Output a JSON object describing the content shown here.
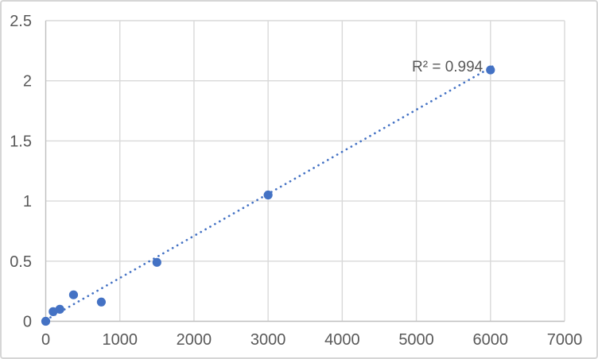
{
  "chart": {
    "background": "#FFFFFF",
    "border_color": "#D6D6D6"
  },
  "chart_data": {
    "type": "scatter",
    "title": "",
    "xlabel": "",
    "ylabel": "",
    "legend": "none",
    "grid": true,
    "series": [
      {
        "name": "standard-curve-points",
        "marker_color": "#4472C4",
        "marker_radius": 5.6,
        "points": [
          {
            "x": 0,
            "y": 0.0
          },
          {
            "x": 100,
            "y": 0.08
          },
          {
            "x": 190,
            "y": 0.1
          },
          {
            "x": 375,
            "y": 0.22
          },
          {
            "x": 750,
            "y": 0.16
          },
          {
            "x": 1500,
            "y": 0.49
          },
          {
            "x": 3000,
            "y": 1.05
          },
          {
            "x": 6000,
            "y": 2.09
          }
        ]
      }
    ],
    "trendline": {
      "type": "linear",
      "style": "dotted",
      "color": "#4472C4",
      "start": {
        "x": 0,
        "y": 0.01
      },
      "end": {
        "x": 6060,
        "y": 2.13
      },
      "label": "R² = 0.994"
    },
    "x_axis": {
      "min": 0,
      "max": 7000,
      "tick_interval": 1000,
      "tick_values": [
        0,
        1000,
        2000,
        3000,
        4000,
        5000,
        6000,
        7000
      ],
      "tick_labels": [
        "0",
        "1000",
        "2000",
        "3000",
        "4000",
        "5000",
        "6000",
        "7000"
      ]
    },
    "y_axis": {
      "min": 0,
      "max": 2.5,
      "tick_interval": 0.5,
      "tick_values": [
        0,
        0.5,
        1,
        1.5,
        2,
        2.5
      ],
      "tick_labels": [
        "0",
        "0.5",
        "1",
        "1.5",
        "2",
        "2.5"
      ]
    },
    "colors": {
      "gridline": "#D9D9D9",
      "axis_line": "#BFBFBF",
      "tick_label": "#595959",
      "annotation": "#595959"
    }
  }
}
